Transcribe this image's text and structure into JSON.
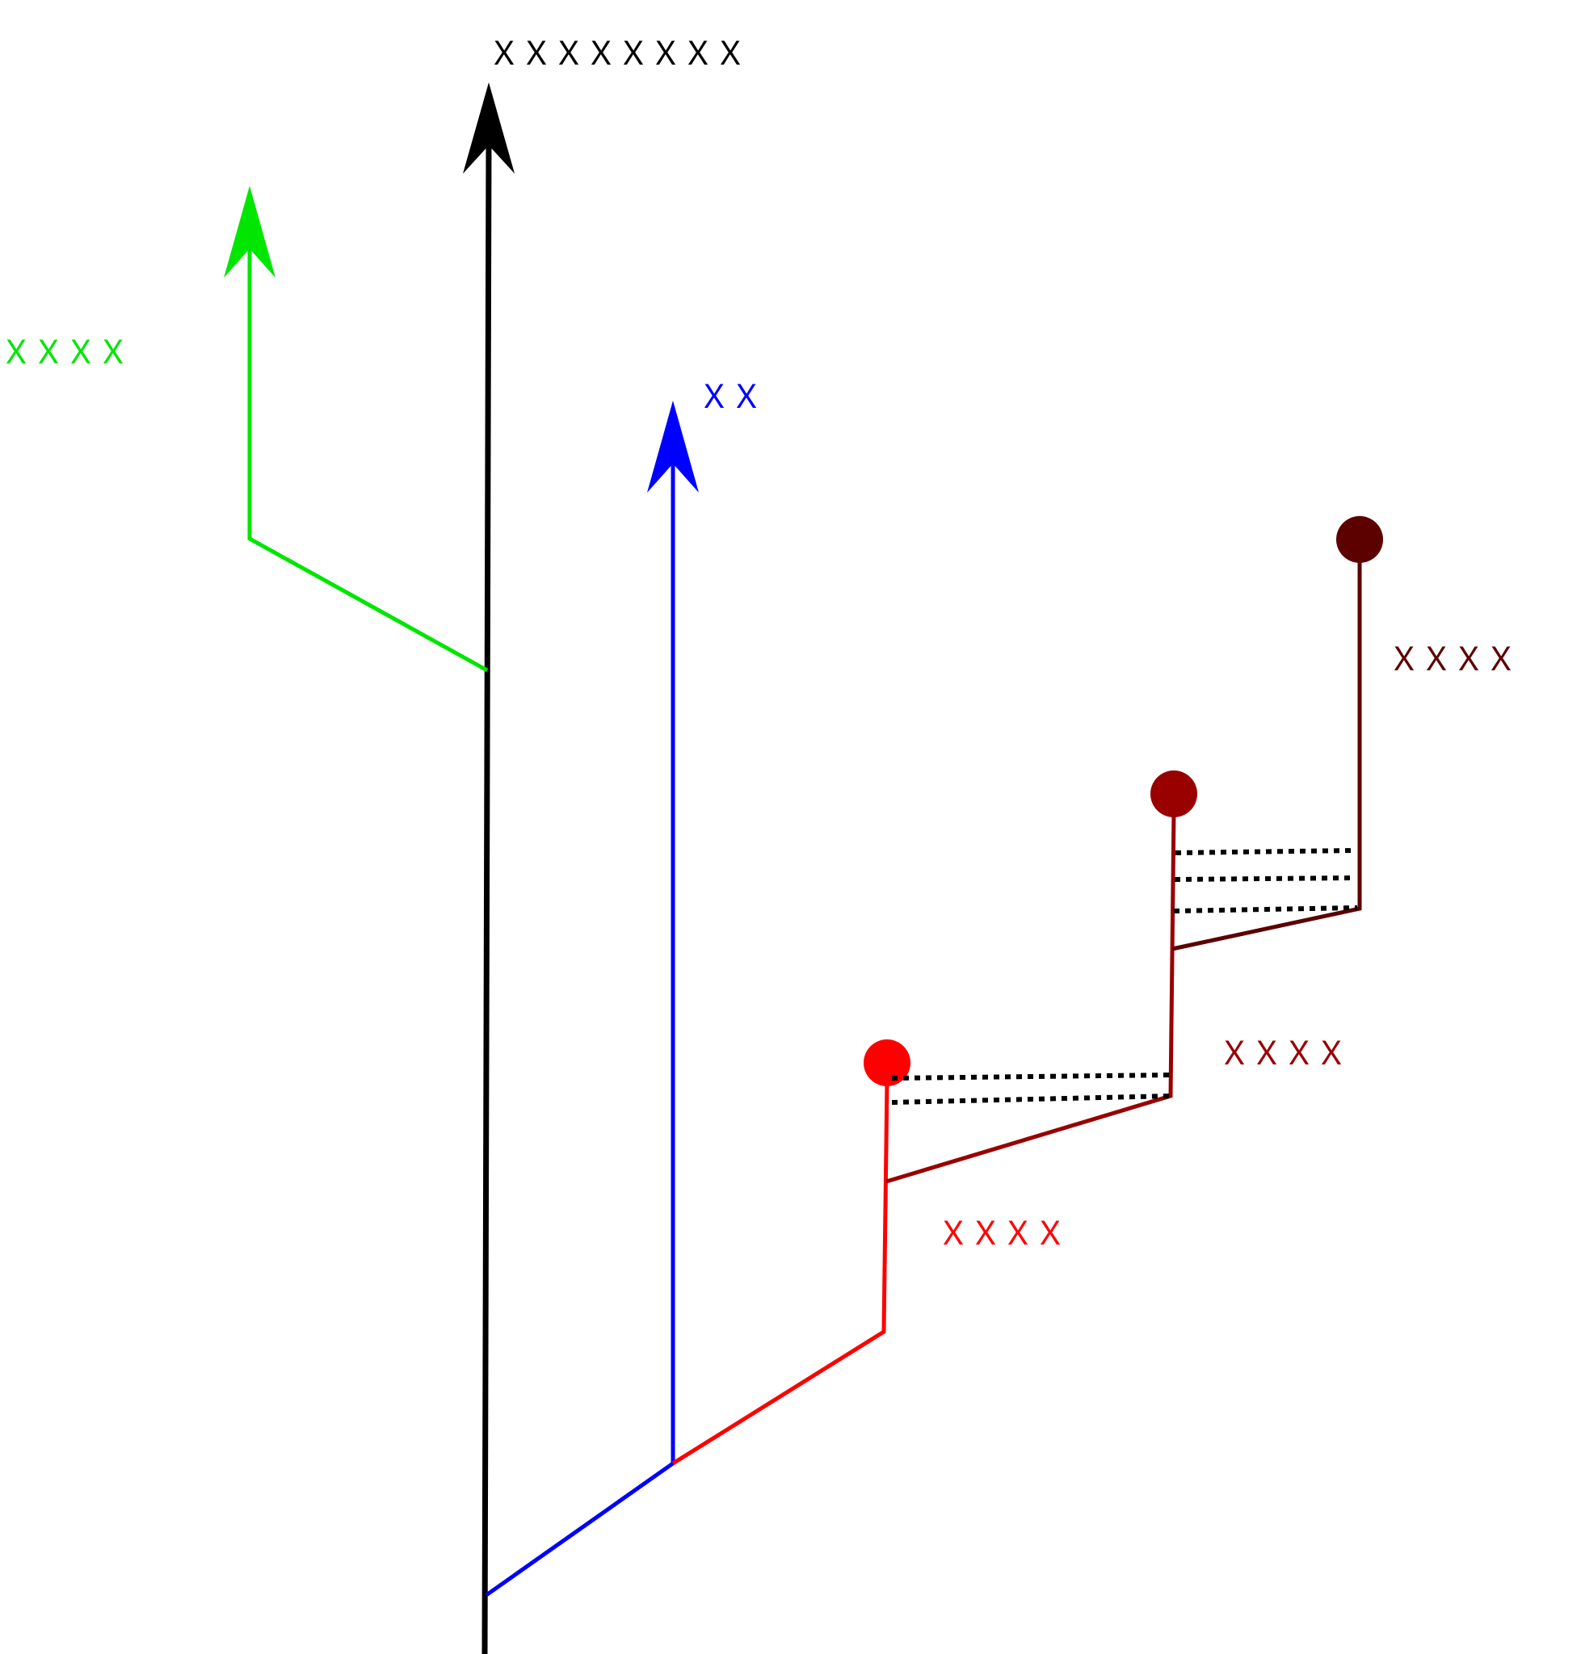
{
  "labels": {
    "main": "ＸＸＸＸＸＸＸＸ",
    "green": "ＸＸＸＸ",
    "blue": "ＸＸ",
    "red": "ＸＸＸＸ",
    "mid": "ＸＸＸＸ",
    "dark": "ＸＸＸＸ"
  },
  "colors": {
    "main": "#000000",
    "green": "#00e600",
    "blue": "#0000ff",
    "red": "#ff0000",
    "mid": "#990000",
    "dark": "#5c0000",
    "dotted": "#000000"
  }
}
